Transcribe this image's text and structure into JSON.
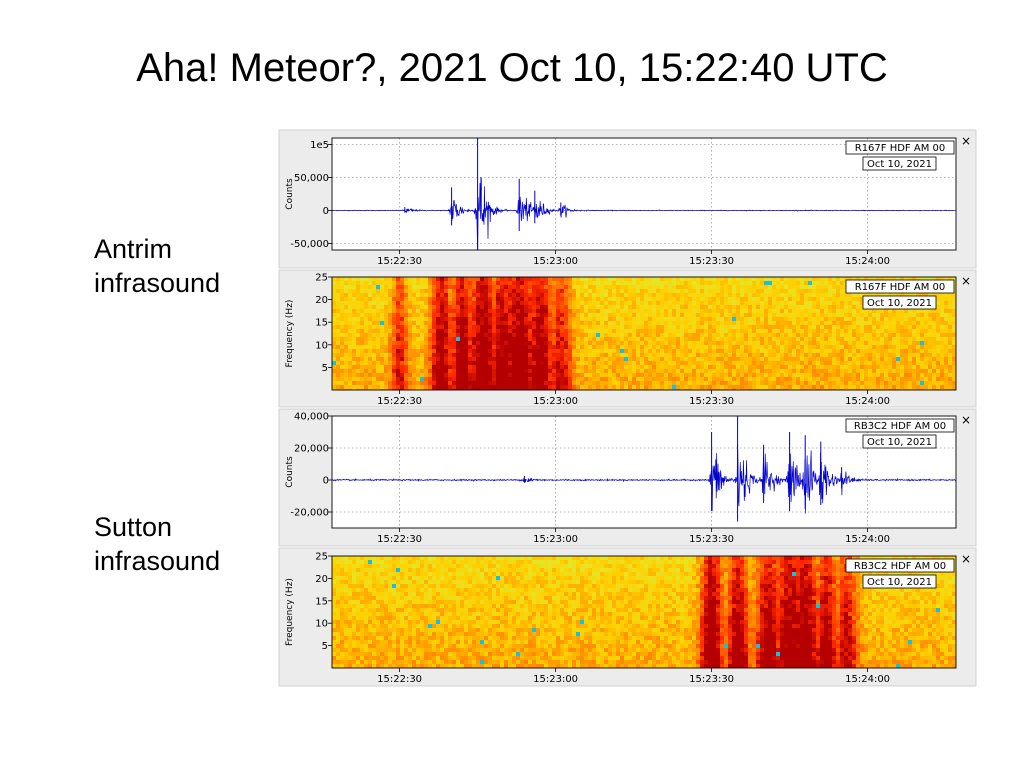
{
  "title": "Aha! Meteor?, 2021 Oct 10, 15:22:40 UTC",
  "stations": [
    {
      "line1": "Antrim",
      "line2": "infrasound"
    },
    {
      "line1": "Sutton",
      "line2": "infrasound"
    }
  ],
  "close_glyph": "×",
  "chart_data": [
    {
      "type": "line",
      "station": "R167F HDF AM 00",
      "date": "Oct 10, 2021",
      "ylabel": "Counts",
      "ylim": [
        -60000,
        110000
      ],
      "yticks": [
        100000,
        50000,
        0,
        -50000
      ],
      "ytick_labels": [
        "1e5",
        "50,000",
        "0",
        "-50,000"
      ],
      "x_range": [
        "15:22:17",
        "15:24:17"
      ],
      "xtick_labels": [
        "15:22:30",
        "15:23:00",
        "15:23:30",
        "15:24:00"
      ],
      "grid": true,
      "color": "#0000cc",
      "noise_amplitude": 600,
      "events": [
        {
          "t": "15:22:31",
          "amp": 5000
        },
        {
          "t": "15:22:40",
          "amp": 35000
        },
        {
          "t": "15:22:45",
          "amp": 110000
        },
        {
          "t": "15:22:53",
          "amp": 48000
        },
        {
          "t": "15:22:56",
          "amp": 30000
        },
        {
          "t": "15:23:01",
          "amp": 12000
        }
      ]
    },
    {
      "type": "heatmap",
      "station": "R167F HDF AM 00",
      "date": "Oct 10, 2021",
      "ylabel": "Frequency (Hz)",
      "ylim": [
        0,
        25
      ],
      "yticks": [
        25,
        20,
        15,
        10,
        5
      ],
      "x_range": [
        "15:22:17",
        "15:24:17"
      ],
      "xtick_labels": [
        "15:22:30",
        "15:23:00",
        "15:23:30",
        "15:24:00"
      ],
      "colormap": [
        "#00b4ff",
        "#3fe0a0",
        "#d8f03c",
        "#ffd000",
        "#ff7a00",
        "#ff2a00",
        "#b40000"
      ],
      "events": [
        {
          "t": "15:22:30",
          "width_s": 1.5,
          "strength": 0.55
        },
        {
          "t": "15:22:38",
          "width_s": 2,
          "strength": 0.85
        },
        {
          "t": "15:22:42",
          "width_s": 2,
          "strength": 0.9
        },
        {
          "t": "15:22:46",
          "width_s": 2.5,
          "strength": 0.95
        },
        {
          "t": "15:22:50",
          "width_s": 2.5,
          "strength": 0.9
        },
        {
          "t": "15:22:53",
          "width_s": 3,
          "strength": 1.0
        },
        {
          "t": "15:22:57",
          "width_s": 2.5,
          "strength": 0.85
        },
        {
          "t": "15:23:01",
          "width_s": 2,
          "strength": 0.6
        }
      ]
    },
    {
      "type": "line",
      "station": "RB3C2 HDF AM 00",
      "date": "Oct 10, 2021",
      "ylabel": "Counts",
      "ylim": [
        -30000,
        40000
      ],
      "yticks": [
        40000,
        20000,
        0,
        -20000
      ],
      "ytick_labels": [
        "40,000",
        "20,000",
        "0",
        "-20,000"
      ],
      "x_range": [
        "15:22:17",
        "15:24:17"
      ],
      "xtick_labels": [
        "15:22:30",
        "15:23:00",
        "15:23:30",
        "15:24:00"
      ],
      "grid": true,
      "color": "#0000cc",
      "noise_amplitude": 500,
      "events": [
        {
          "t": "15:22:54",
          "amp": 2500
        },
        {
          "t": "15:23:30",
          "amp": 30000
        },
        {
          "t": "15:23:35",
          "amp": 40000
        },
        {
          "t": "15:23:40",
          "amp": 22000
        },
        {
          "t": "15:23:45",
          "amp": 30000
        },
        {
          "t": "15:23:48",
          "amp": 28000
        },
        {
          "t": "15:23:51",
          "amp": 24000
        },
        {
          "t": "15:23:55",
          "amp": 8000
        }
      ]
    },
    {
      "type": "heatmap",
      "station": "RB3C2 HDF AM 00",
      "date": "Oct 10, 2021",
      "ylabel": "Frequency (Hz)",
      "ylim": [
        0,
        25
      ],
      "yticks": [
        25,
        20,
        15,
        10,
        5
      ],
      "x_range": [
        "15:22:17",
        "15:24:17"
      ],
      "xtick_labels": [
        "15:22:30",
        "15:23:00",
        "15:23:30",
        "15:24:00"
      ],
      "colormap": [
        "#00b4ff",
        "#3fe0a0",
        "#d8f03c",
        "#ffd000",
        "#ff7a00",
        "#ff2a00",
        "#b40000"
      ],
      "events": [
        {
          "t": "15:23:30",
          "width_s": 2,
          "strength": 0.95
        },
        {
          "t": "15:23:35",
          "width_s": 2,
          "strength": 0.85
        },
        {
          "t": "15:23:41",
          "width_s": 2.5,
          "strength": 0.8
        },
        {
          "t": "15:23:45",
          "width_s": 2.5,
          "strength": 0.9
        },
        {
          "t": "15:23:48",
          "width_s": 2.5,
          "strength": 0.95
        },
        {
          "t": "15:23:52",
          "width_s": 2,
          "strength": 0.8
        },
        {
          "t": "15:23:56",
          "width_s": 2,
          "strength": 0.65
        }
      ]
    }
  ]
}
